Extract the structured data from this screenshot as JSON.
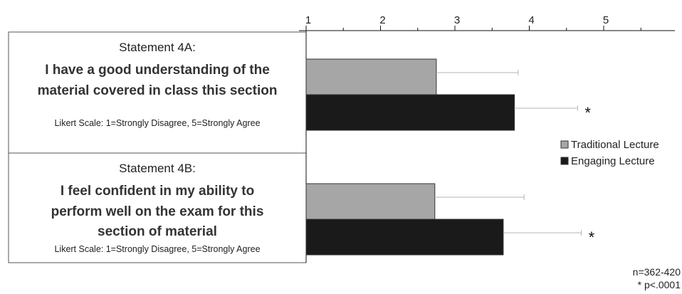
{
  "chart_data": {
    "type": "bar",
    "orientation": "horizontal",
    "categories": [
      "Statement 4A",
      "Statement 4B"
    ],
    "series": [
      {
        "name": "Traditional Lecture",
        "color": "#a6a6a6",
        "values": [
          2.75,
          2.73
        ],
        "error_plus": [
          1.1,
          1.2
        ]
      },
      {
        "name": "Engaging Lecture",
        "color": "#1a1a1a",
        "values": [
          3.8,
          3.65
        ],
        "error_plus": [
          0.85,
          1.05
        ],
        "significance": [
          "*",
          "*"
        ]
      }
    ],
    "xlim": [
      1,
      5
    ],
    "x_ticks": [
      "1",
      "2",
      "3",
      "4",
      "5"
    ],
    "legend_position": "right",
    "grid": false
  },
  "statements": [
    {
      "title": "Statement 4A:",
      "lines": [
        "I have a good understanding of the",
        "material covered in class this section"
      ],
      "scale": "Likert Scale: 1=Strongly Disagree, 5=Strongly Agree"
    },
    {
      "title": "Statement 4B:",
      "lines": [
        "I feel confident in my ability to",
        "perform well on the exam for this",
        "section of material"
      ],
      "scale": "Likert Scale: 1=Strongly Disagree, 5=Strongly Agree"
    }
  ],
  "notes": {
    "n": "n=362-420",
    "p": "* p<.0001"
  }
}
